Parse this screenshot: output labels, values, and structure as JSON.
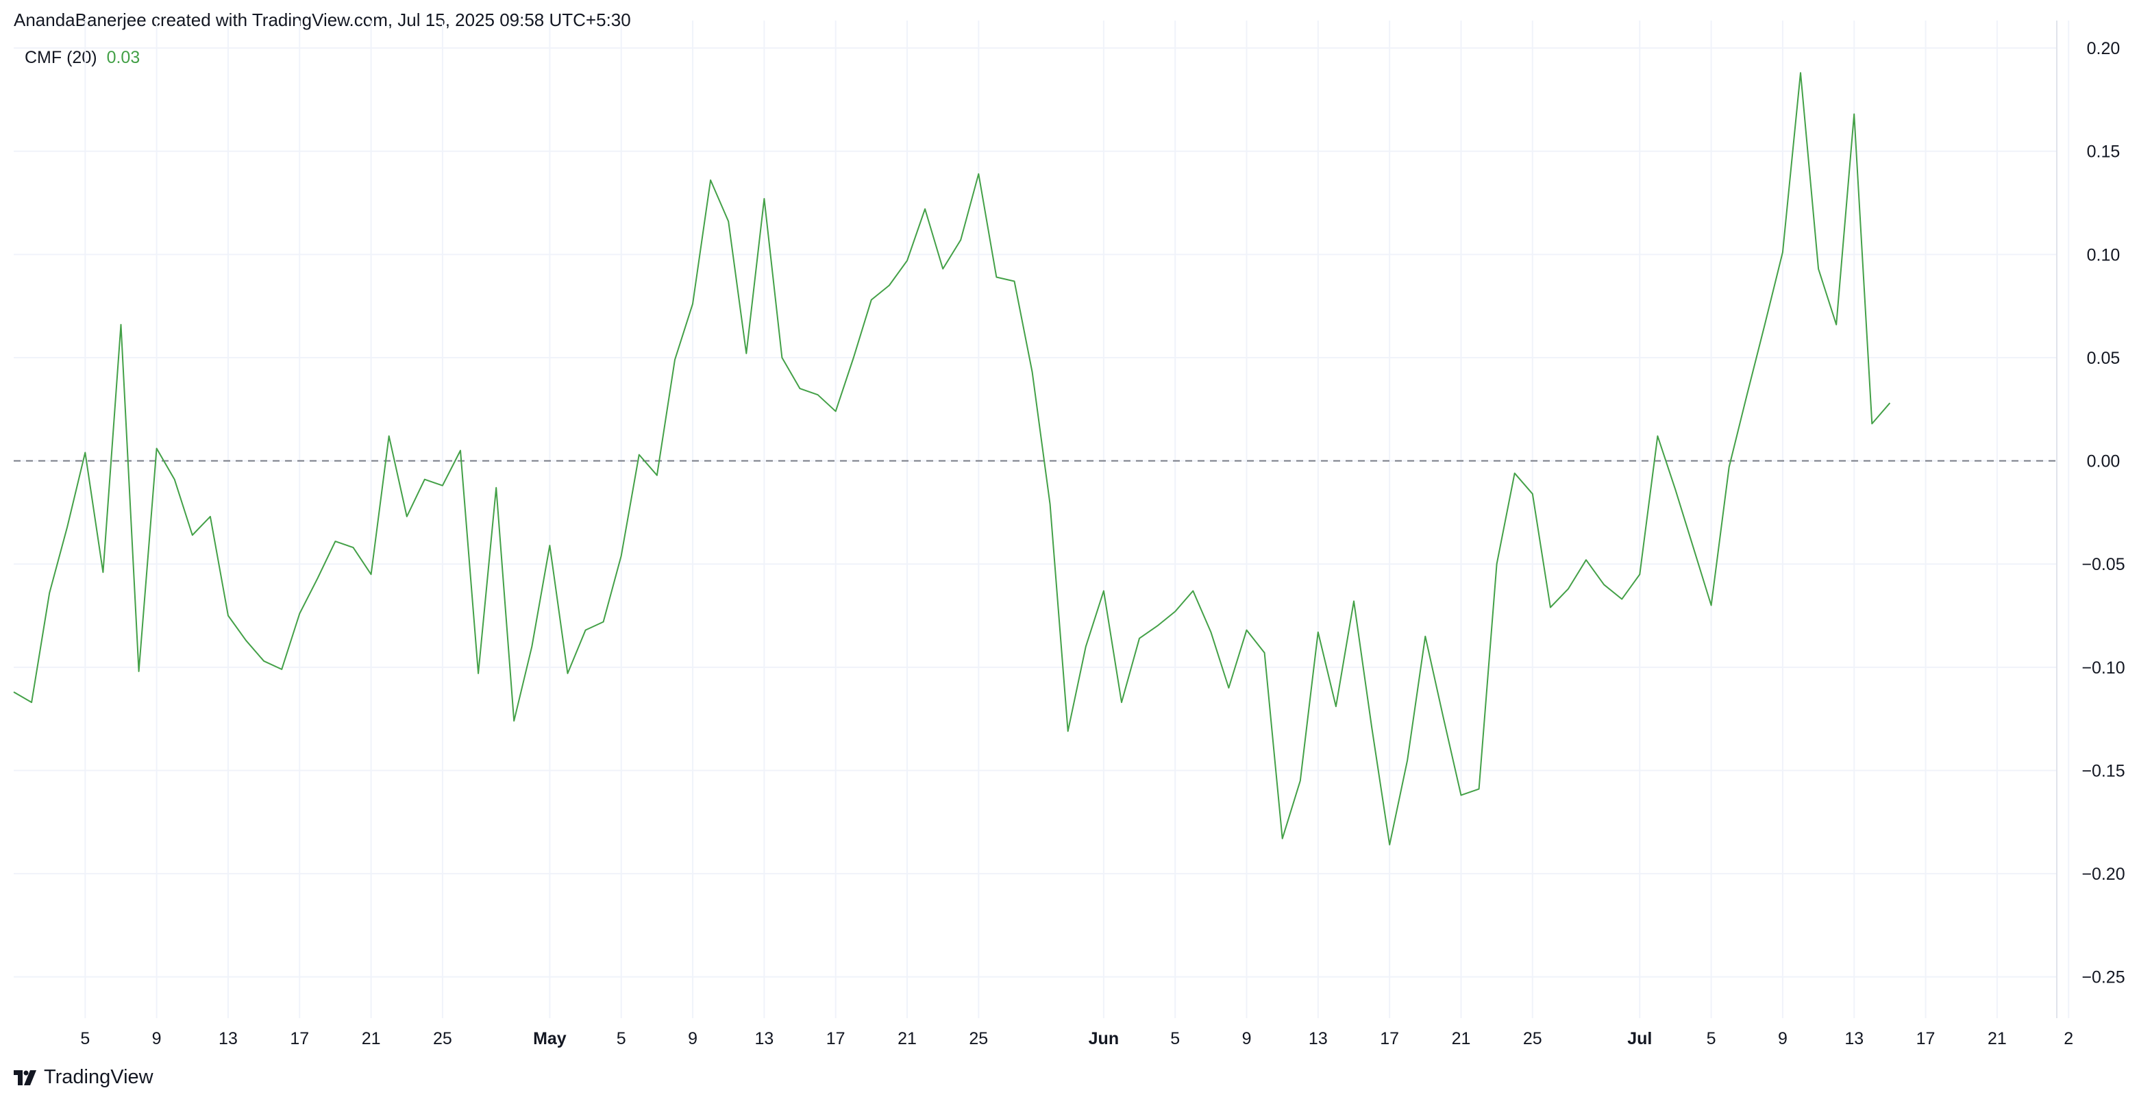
{
  "header": {
    "credit": "AnandaBanerjee created with TradingView.com, Jul 15, 2025 09:58 UTC+5:30"
  },
  "legend": {
    "indicator": "CMF (20)",
    "value": "0.03"
  },
  "brand": {
    "name": "TradingView",
    "logo_icon": "tradingview-logo-icon"
  },
  "colors": {
    "line": "#43a047",
    "grid": "#f0f3fa",
    "zero_line": "#787b86",
    "text": "#131722"
  },
  "chart_data": {
    "type": "line",
    "title": "",
    "xlabel": "",
    "ylabel": "",
    "ylim": [
      -0.27,
      0.205
    ],
    "grid": true,
    "reference_line": {
      "y": 0.0,
      "style": "dashed"
    },
    "y_ticks": [
      0.2,
      0.15,
      0.1,
      0.05,
      0.0,
      -0.05,
      -0.1,
      -0.15,
      -0.2,
      -0.25
    ],
    "y_tick_labels": [
      "0.20",
      "0.15",
      "0.10",
      "0.05",
      "0.00",
      "−0.05",
      "−0.10",
      "−0.15",
      "−0.20",
      "−0.25"
    ],
    "x_tick_labels": [
      {
        "label": "5",
        "date": "2025-04-05",
        "bold": false
      },
      {
        "label": "9",
        "date": "2025-04-09",
        "bold": false
      },
      {
        "label": "13",
        "date": "2025-04-13",
        "bold": false
      },
      {
        "label": "17",
        "date": "2025-04-17",
        "bold": false
      },
      {
        "label": "21",
        "date": "2025-04-21",
        "bold": false
      },
      {
        "label": "25",
        "date": "2025-04-25",
        "bold": false
      },
      {
        "label": "May",
        "date": "2025-05-01",
        "bold": true
      },
      {
        "label": "5",
        "date": "2025-05-05",
        "bold": false
      },
      {
        "label": "9",
        "date": "2025-05-09",
        "bold": false
      },
      {
        "label": "13",
        "date": "2025-05-13",
        "bold": false
      },
      {
        "label": "17",
        "date": "2025-05-17",
        "bold": false
      },
      {
        "label": "21",
        "date": "2025-05-21",
        "bold": false
      },
      {
        "label": "25",
        "date": "2025-05-25",
        "bold": false
      },
      {
        "label": "Jun",
        "date": "2025-06-01",
        "bold": true
      },
      {
        "label": "5",
        "date": "2025-06-05",
        "bold": false
      },
      {
        "label": "9",
        "date": "2025-06-09",
        "bold": false
      },
      {
        "label": "13",
        "date": "2025-06-13",
        "bold": false
      },
      {
        "label": "17",
        "date": "2025-06-17",
        "bold": false
      },
      {
        "label": "21",
        "date": "2025-06-21",
        "bold": false
      },
      {
        "label": "25",
        "date": "2025-06-25",
        "bold": false
      },
      {
        "label": "Jul",
        "date": "2025-07-01",
        "bold": true
      },
      {
        "label": "5",
        "date": "2025-07-05",
        "bold": false
      },
      {
        "label": "9",
        "date": "2025-07-09",
        "bold": false
      },
      {
        "label": "13",
        "date": "2025-07-13",
        "bold": false
      },
      {
        "label": "17",
        "date": "2025-07-17",
        "bold": false
      },
      {
        "label": "21",
        "date": "2025-07-21",
        "bold": false
      },
      {
        "label": "2",
        "date": "2025-07-25",
        "bold": false
      }
    ],
    "x_range": [
      "2025-04-01",
      "2025-07-26"
    ],
    "series": [
      {
        "values": [
          [
            "2025-04-01",
            -0.112
          ],
          [
            "2025-04-02",
            -0.117
          ],
          [
            "2025-04-03",
            -0.064
          ],
          [
            "2025-04-04",
            -0.032
          ],
          [
            "2025-04-05",
            0.004
          ],
          [
            "2025-04-06",
            -0.054
          ],
          [
            "2025-04-07",
            0.066
          ],
          [
            "2025-04-08",
            -0.102
          ],
          [
            "2025-04-09",
            0.006
          ],
          [
            "2025-04-10",
            -0.009
          ],
          [
            "2025-04-11",
            -0.036
          ],
          [
            "2025-04-12",
            -0.027
          ],
          [
            "2025-04-13",
            -0.075
          ],
          [
            "2025-04-14",
            -0.087
          ],
          [
            "2025-04-15",
            -0.097
          ],
          [
            "2025-04-16",
            -0.101
          ],
          [
            "2025-04-17",
            -0.074
          ],
          [
            "2025-04-18",
            -0.057
          ],
          [
            "2025-04-19",
            -0.039
          ],
          [
            "2025-04-20",
            -0.042
          ],
          [
            "2025-04-21",
            -0.055
          ],
          [
            "2025-04-22",
            0.012
          ],
          [
            "2025-04-23",
            -0.027
          ],
          [
            "2025-04-24",
            -0.009
          ],
          [
            "2025-04-25",
            -0.012
          ],
          [
            "2025-04-26",
            0.005
          ],
          [
            "2025-04-27",
            -0.103
          ],
          [
            "2025-04-28",
            -0.013
          ],
          [
            "2025-04-29",
            -0.126
          ],
          [
            "2025-04-30",
            -0.09
          ],
          [
            "2025-05-01",
            -0.041
          ],
          [
            "2025-05-02",
            -0.103
          ],
          [
            "2025-05-03",
            -0.082
          ],
          [
            "2025-05-04",
            -0.078
          ],
          [
            "2025-05-05",
            -0.046
          ],
          [
            "2025-05-06",
            0.003
          ],
          [
            "2025-05-07",
            -0.007
          ],
          [
            "2025-05-08",
            0.049
          ],
          [
            "2025-05-09",
            0.076
          ],
          [
            "2025-05-10",
            0.136
          ],
          [
            "2025-05-11",
            0.116
          ],
          [
            "2025-05-12",
            0.052
          ],
          [
            "2025-05-13",
            0.127
          ],
          [
            "2025-05-14",
            0.05
          ],
          [
            "2025-05-15",
            0.035
          ],
          [
            "2025-05-16",
            0.032
          ],
          [
            "2025-05-17",
            0.024
          ],
          [
            "2025-05-18",
            0.05
          ],
          [
            "2025-05-19",
            0.078
          ],
          [
            "2025-05-20",
            0.085
          ],
          [
            "2025-05-21",
            0.097
          ],
          [
            "2025-05-22",
            0.122
          ],
          [
            "2025-05-23",
            0.093
          ],
          [
            "2025-05-24",
            0.107
          ],
          [
            "2025-05-25",
            0.139
          ],
          [
            "2025-05-26",
            0.089
          ],
          [
            "2025-05-27",
            0.087
          ],
          [
            "2025-05-28",
            0.043
          ],
          [
            "2025-05-29",
            -0.021
          ],
          [
            "2025-05-30",
            -0.131
          ],
          [
            "2025-05-31",
            -0.09
          ],
          [
            "2025-06-01",
            -0.063
          ],
          [
            "2025-06-02",
            -0.117
          ],
          [
            "2025-06-03",
            -0.086
          ],
          [
            "2025-06-04",
            -0.08
          ],
          [
            "2025-06-05",
            -0.073
          ],
          [
            "2025-06-06",
            -0.063
          ],
          [
            "2025-06-07",
            -0.083
          ],
          [
            "2025-06-08",
            -0.11
          ],
          [
            "2025-06-09",
            -0.082
          ],
          [
            "2025-06-10",
            -0.093
          ],
          [
            "2025-06-11",
            -0.183
          ],
          [
            "2025-06-12",
            -0.155
          ],
          [
            "2025-06-13",
            -0.083
          ],
          [
            "2025-06-14",
            -0.119
          ],
          [
            "2025-06-15",
            -0.068
          ],
          [
            "2025-06-16",
            -0.129
          ],
          [
            "2025-06-17",
            -0.186
          ],
          [
            "2025-06-18",
            -0.145
          ],
          [
            "2025-06-19",
            -0.085
          ],
          [
            "2025-06-20",
            -0.124
          ],
          [
            "2025-06-21",
            -0.162
          ],
          [
            "2025-06-22",
            -0.159
          ],
          [
            "2025-06-23",
            -0.05
          ],
          [
            "2025-06-24",
            -0.006
          ],
          [
            "2025-06-25",
            -0.016
          ],
          [
            "2025-06-26",
            -0.071
          ],
          [
            "2025-06-27",
            -0.062
          ],
          [
            "2025-06-28",
            -0.048
          ],
          [
            "2025-06-29",
            -0.06
          ],
          [
            "2025-06-30",
            -0.067
          ],
          [
            "2025-07-01",
            -0.055
          ],
          [
            "2025-07-02",
            0.012
          ],
          [
            "2025-07-03",
            -0.014
          ],
          [
            "2025-07-04",
            -0.042
          ],
          [
            "2025-07-05",
            -0.07
          ],
          [
            "2025-07-06",
            -0.003
          ],
          [
            "2025-07-07",
            0.032
          ],
          [
            "2025-07-08",
            0.066
          ],
          [
            "2025-07-09",
            0.101
          ],
          [
            "2025-07-10",
            0.188
          ],
          [
            "2025-07-11",
            0.093
          ],
          [
            "2025-07-12",
            0.066
          ],
          [
            "2025-07-13",
            0.168
          ],
          [
            "2025-07-14",
            0.018
          ],
          [
            "2025-07-15",
            0.028
          ]
        ]
      }
    ]
  }
}
